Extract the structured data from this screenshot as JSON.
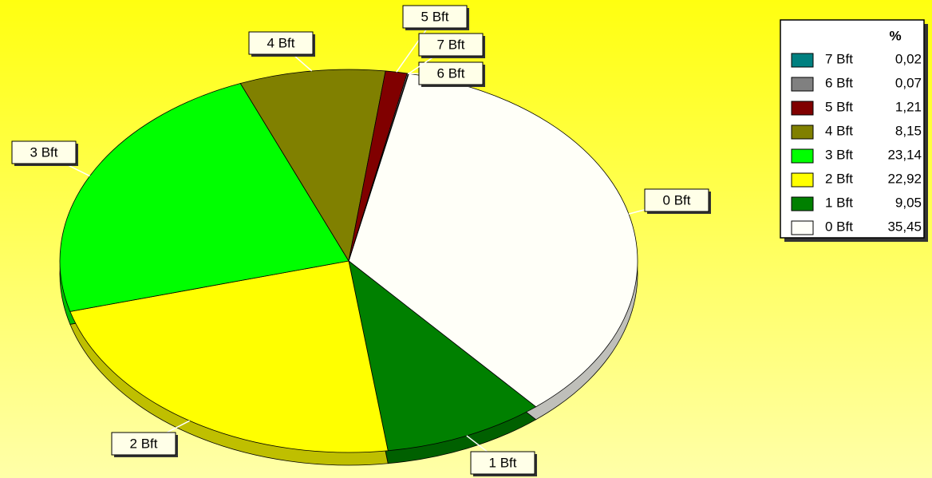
{
  "chart_data": {
    "type": "pie",
    "legend_title": "%",
    "categories": [
      "7 Bft",
      "6 Bft",
      "5 Bft",
      "4 Bft",
      "3 Bft",
      "2 Bft",
      "1 Bft",
      "0 Bft"
    ],
    "values": [
      0.02,
      0.07,
      1.21,
      8.15,
      23.14,
      22.92,
      9.05,
      35.45
    ],
    "value_labels": [
      "0,02",
      "0,07",
      "1,21",
      "8,15",
      "23,14",
      "22,92",
      "9,05",
      "35,45"
    ],
    "colors": [
      "#008080",
      "#808080",
      "#800000",
      "#808000",
      "#00ff00",
      "#ffff00",
      "#008000",
      "#fffff8"
    ],
    "legend": "top-right"
  }
}
